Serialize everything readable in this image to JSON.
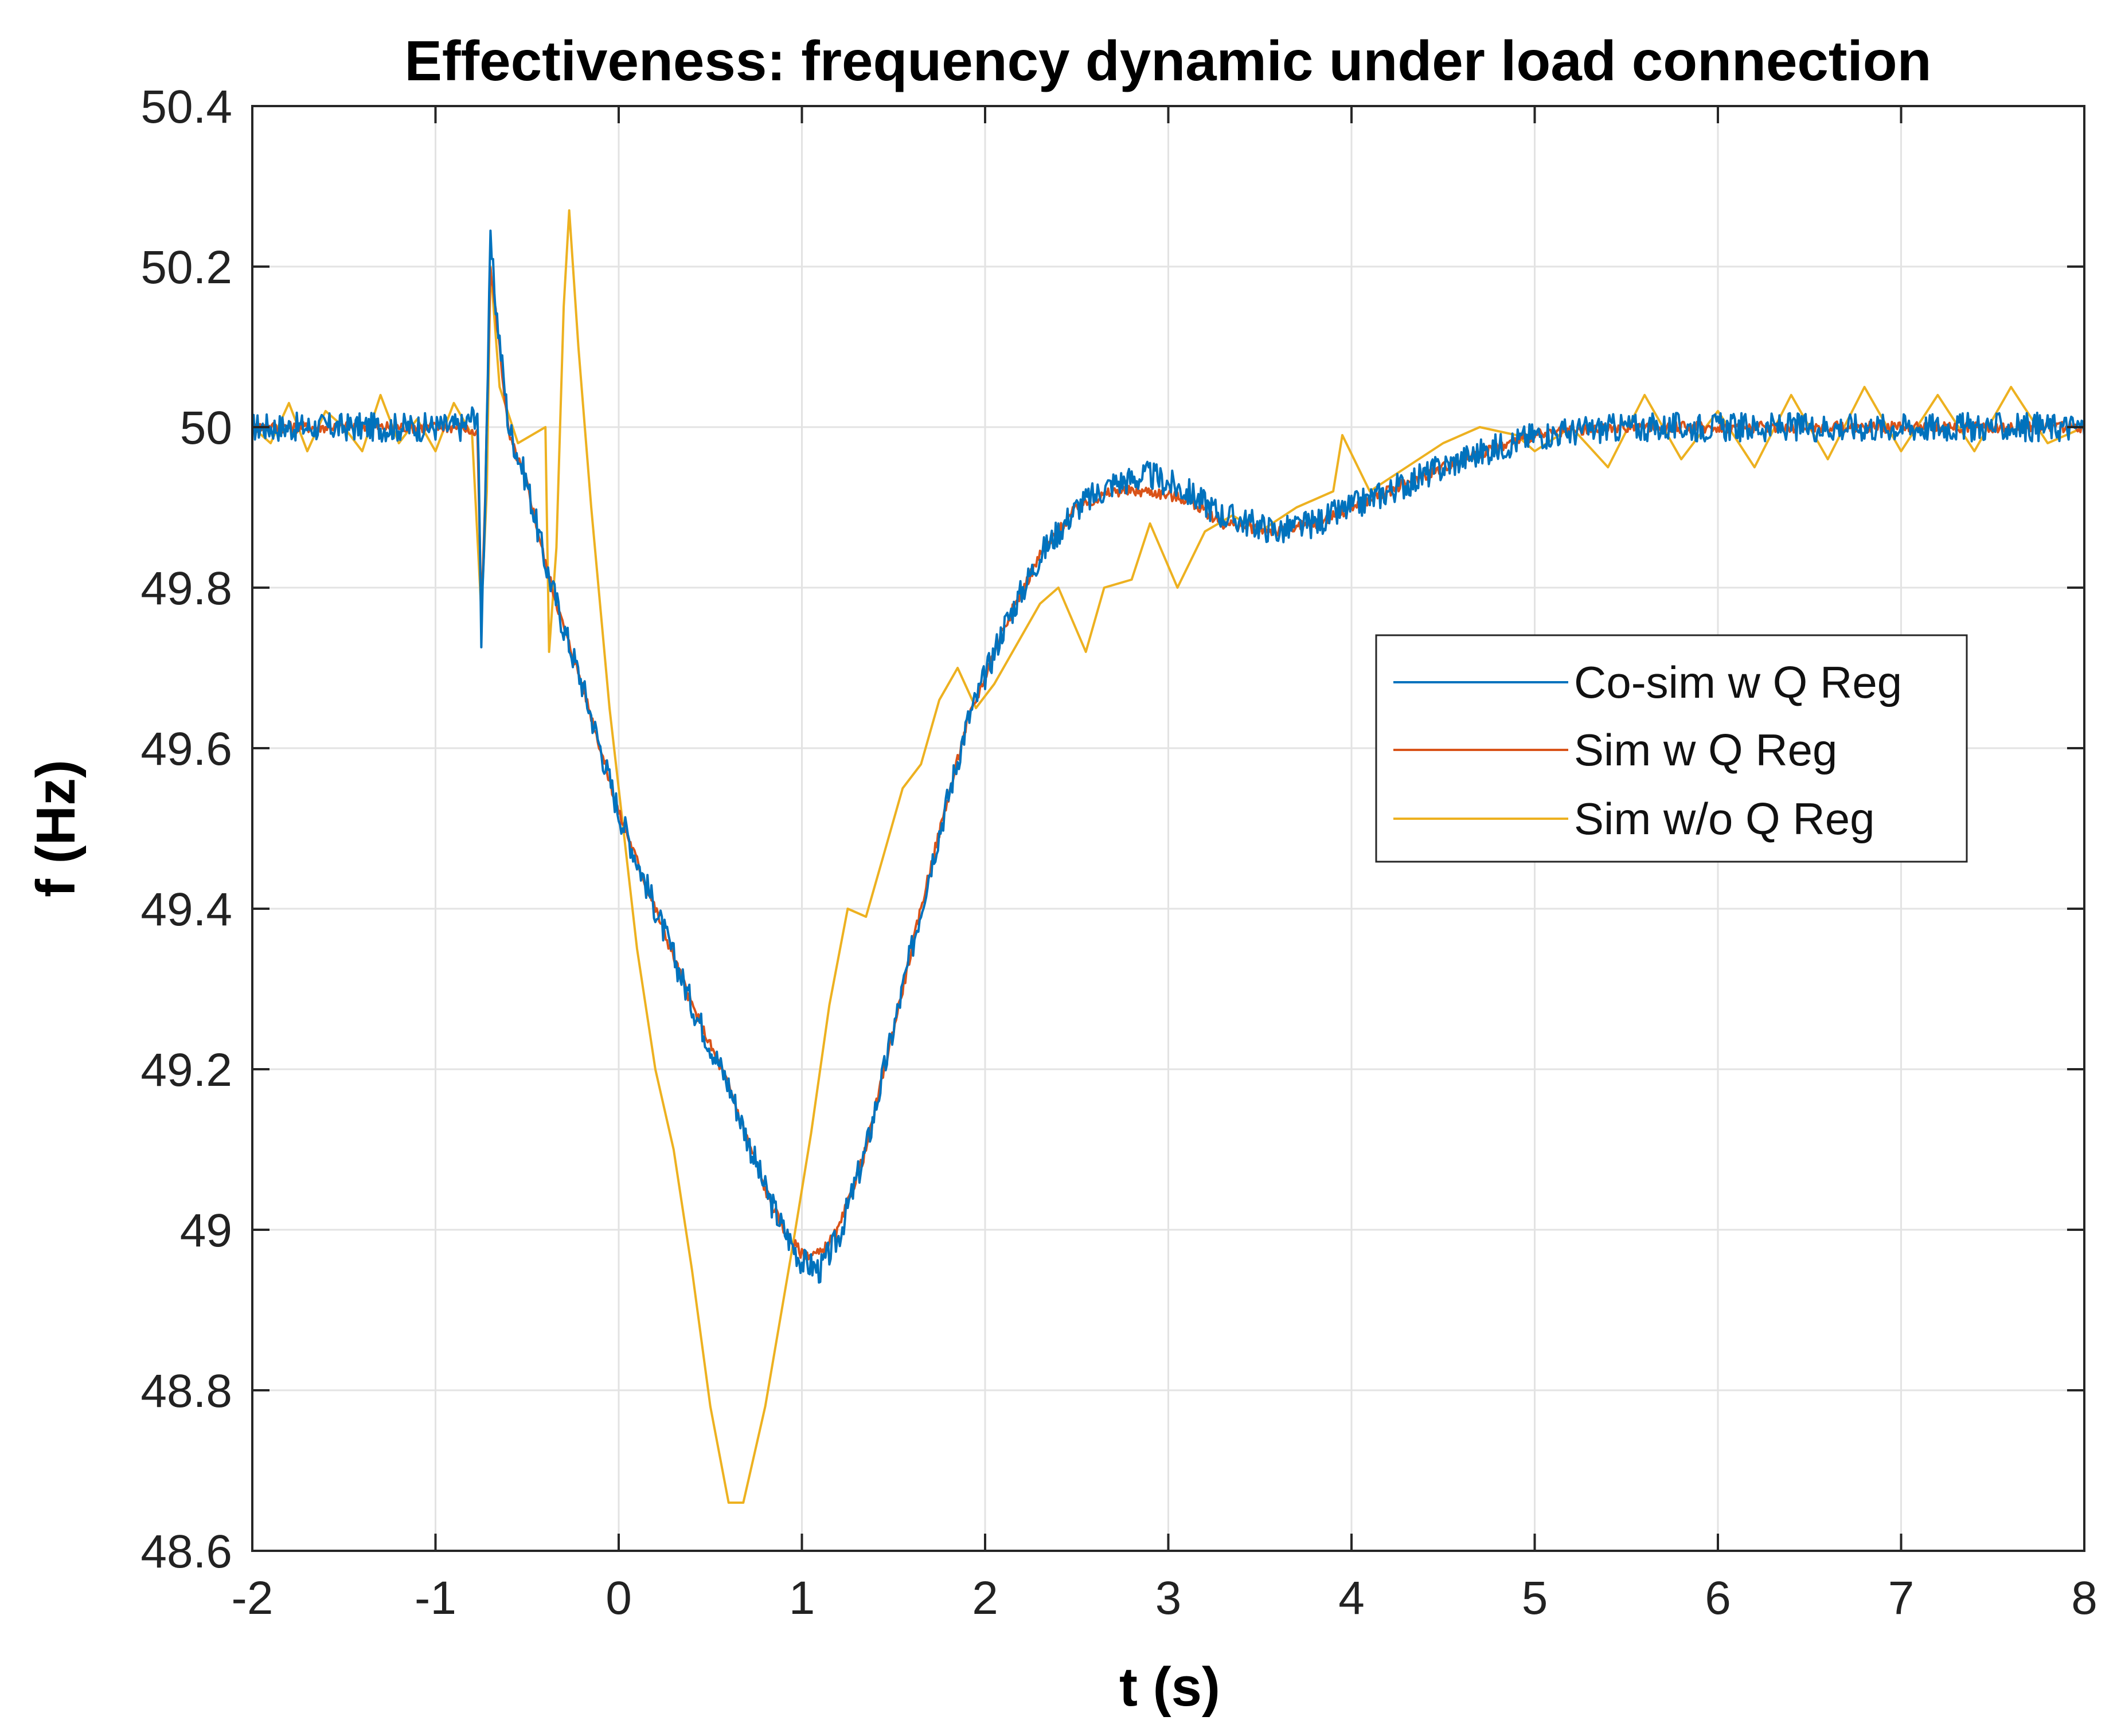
{
  "chart_data": {
    "type": "line",
    "title": "Effectiveness: frequency dynamic under load connection",
    "xlabel": "t (s)",
    "ylabel": "f (Hz)",
    "xlim": [
      -2,
      8
    ],
    "ylim": [
      48.6,
      50.4
    ],
    "xticks": [
      -2,
      -1,
      0,
      1,
      2,
      3,
      4,
      5,
      6,
      7,
      8
    ],
    "yticks": [
      48.6,
      48.8,
      49,
      49.2,
      49.4,
      49.6,
      49.8,
      50,
      50.2,
      50.4
    ],
    "xtick_labels": [
      "-2",
      "-1",
      "0",
      "1",
      "2",
      "3",
      "4",
      "5",
      "6",
      "7",
      "8"
    ],
    "ytick_labels": [
      "48.6",
      "48.8",
      "49",
      "49.2",
      "49.4",
      "49.6",
      "49.8",
      "50",
      "50.2",
      "50.4"
    ],
    "grid": true,
    "legend_position": "right-middle",
    "series": [
      {
        "name": "Co-sim w Q Reg",
        "color": "#0072BD",
        "noise": 0.018,
        "points": [
          [
            -2,
            50.0
          ],
          [
            -1.5,
            50.0
          ],
          [
            -0.85,
            50.0
          ],
          [
            -0.77,
            50.02
          ],
          [
            -0.75,
            49.74
          ],
          [
            -0.73,
            49.9
          ],
          [
            -0.7,
            50.23
          ],
          [
            -0.67,
            50.15
          ],
          [
            -0.6,
            50.0
          ],
          [
            -0.5,
            49.93
          ],
          [
            -0.4,
            49.83
          ],
          [
            -0.3,
            49.75
          ],
          [
            -0.2,
            49.68
          ],
          [
            0.0,
            49.52
          ],
          [
            0.2,
            49.4
          ],
          [
            0.4,
            49.28
          ],
          [
            0.6,
            49.18
          ],
          [
            0.8,
            49.05
          ],
          [
            0.9,
            49.0
          ],
          [
            1.0,
            48.96
          ],
          [
            1.1,
            48.95
          ],
          [
            1.2,
            48.99
          ],
          [
            1.35,
            49.1
          ],
          [
            1.5,
            49.25
          ],
          [
            1.7,
            49.45
          ],
          [
            1.9,
            49.63
          ],
          [
            2.1,
            49.75
          ],
          [
            2.3,
            49.84
          ],
          [
            2.5,
            49.9
          ],
          [
            2.7,
            49.93
          ],
          [
            2.9,
            49.94
          ],
          [
            3.1,
            49.92
          ],
          [
            3.3,
            49.89
          ],
          [
            3.6,
            49.87
          ],
          [
            3.8,
            49.88
          ],
          [
            4.0,
            49.9
          ],
          [
            4.3,
            49.93
          ],
          [
            4.6,
            49.96
          ],
          [
            5.0,
            49.99
          ],
          [
            5.5,
            50.0
          ],
          [
            6.0,
            50.0
          ],
          [
            7.0,
            50.0
          ],
          [
            8.0,
            50.0
          ]
        ]
      },
      {
        "name": "Sim w Q Reg",
        "color": "#D95319",
        "noise": 0.007,
        "points": [
          [
            -2,
            50.0
          ],
          [
            -1.5,
            50.0
          ],
          [
            -0.85,
            50.0
          ],
          [
            -0.77,
            49.99
          ],
          [
            -0.75,
            49.76
          ],
          [
            -0.73,
            49.9
          ],
          [
            -0.7,
            50.2
          ],
          [
            -0.66,
            50.12
          ],
          [
            -0.6,
            49.99
          ],
          [
            -0.5,
            49.93
          ],
          [
            -0.4,
            49.83
          ],
          [
            -0.3,
            49.75
          ],
          [
            -0.2,
            49.68
          ],
          [
            0.0,
            49.52
          ],
          [
            0.2,
            49.4
          ],
          [
            0.4,
            49.28
          ],
          [
            0.6,
            49.18
          ],
          [
            0.8,
            49.05
          ],
          [
            0.9,
            49.0
          ],
          [
            1.0,
            48.97
          ],
          [
            1.1,
            48.97
          ],
          [
            1.2,
            49.0
          ],
          [
            1.35,
            49.1
          ],
          [
            1.5,
            49.25
          ],
          [
            1.7,
            49.45
          ],
          [
            1.9,
            49.63
          ],
          [
            2.1,
            49.75
          ],
          [
            2.3,
            49.84
          ],
          [
            2.5,
            49.9
          ],
          [
            2.7,
            49.92
          ],
          [
            2.9,
            49.92
          ],
          [
            3.1,
            49.91
          ],
          [
            3.3,
            49.88
          ],
          [
            3.6,
            49.87
          ],
          [
            3.8,
            49.88
          ],
          [
            4.0,
            49.9
          ],
          [
            4.3,
            49.93
          ],
          [
            4.6,
            49.96
          ],
          [
            5.0,
            49.99
          ],
          [
            5.5,
            50.0
          ],
          [
            6.0,
            50.0
          ],
          [
            7.0,
            50.0
          ],
          [
            8.0,
            50.0
          ]
        ]
      },
      {
        "name": "Sim w/o Q Reg",
        "color": "#EDB120",
        "noise": 0.0,
        "points": [
          [
            -2,
            50.0
          ],
          [
            -1.9,
            49.98
          ],
          [
            -1.8,
            50.03
          ],
          [
            -1.7,
            49.97
          ],
          [
            -1.6,
            50.02
          ],
          [
            -1.5,
            50.0
          ],
          [
            -1.4,
            49.97
          ],
          [
            -1.3,
            50.04
          ],
          [
            -1.2,
            49.98
          ],
          [
            -1.1,
            50.01
          ],
          [
            -1.0,
            49.97
          ],
          [
            -0.9,
            50.03
          ],
          [
            -0.8,
            49.99
          ],
          [
            -0.75,
            49.77
          ],
          [
            -0.72,
            49.92
          ],
          [
            -0.7,
            50.2
          ],
          [
            -0.65,
            50.05
          ],
          [
            -0.55,
            49.98
          ],
          [
            -0.4,
            50.0
          ],
          [
            -0.38,
            49.72
          ],
          [
            -0.34,
            49.85
          ],
          [
            -0.3,
            50.15
          ],
          [
            -0.27,
            50.27
          ],
          [
            -0.22,
            50.1
          ],
          [
            -0.15,
            49.9
          ],
          [
            -0.05,
            49.65
          ],
          [
            0.1,
            49.35
          ],
          [
            0.2,
            49.2
          ],
          [
            0.3,
            49.1
          ],
          [
            0.4,
            48.95
          ],
          [
            0.5,
            48.78
          ],
          [
            0.6,
            48.66
          ],
          [
            0.68,
            48.66
          ],
          [
            0.8,
            48.78
          ],
          [
            0.95,
            48.98
          ],
          [
            1.05,
            49.12
          ],
          [
            1.15,
            49.28
          ],
          [
            1.25,
            49.4
          ],
          [
            1.35,
            49.39
          ],
          [
            1.45,
            49.47
          ],
          [
            1.55,
            49.55
          ],
          [
            1.65,
            49.58
          ],
          [
            1.75,
            49.66
          ],
          [
            1.85,
            49.7
          ],
          [
            1.95,
            49.65
          ],
          [
            2.05,
            49.68
          ],
          [
            2.15,
            49.72
          ],
          [
            2.3,
            49.78
          ],
          [
            2.4,
            49.8
          ],
          [
            2.55,
            49.72
          ],
          [
            2.65,
            49.8
          ],
          [
            2.8,
            49.81
          ],
          [
            2.9,
            49.88
          ],
          [
            3.05,
            49.8
          ],
          [
            3.2,
            49.87
          ],
          [
            3.35,
            49.89
          ],
          [
            3.5,
            49.87
          ],
          [
            3.7,
            49.9
          ],
          [
            3.9,
            49.92
          ],
          [
            3.95,
            49.99
          ],
          [
            4.1,
            49.92
          ],
          [
            4.3,
            49.95
          ],
          [
            4.5,
            49.98
          ],
          [
            4.7,
            50.0
          ],
          [
            4.9,
            49.99
          ],
          [
            5.0,
            49.97
          ],
          [
            5.2,
            50.0
          ],
          [
            5.4,
            49.95
          ],
          [
            5.6,
            50.04
          ],
          [
            5.8,
            49.96
          ],
          [
            6.0,
            50.02
          ],
          [
            6.2,
            49.95
          ],
          [
            6.4,
            50.04
          ],
          [
            6.6,
            49.96
          ],
          [
            6.8,
            50.05
          ],
          [
            7.0,
            49.97
          ],
          [
            7.2,
            50.04
          ],
          [
            7.4,
            49.97
          ],
          [
            7.6,
            50.05
          ],
          [
            7.8,
            49.98
          ],
          [
            8.0,
            50.0
          ]
        ]
      }
    ]
  }
}
